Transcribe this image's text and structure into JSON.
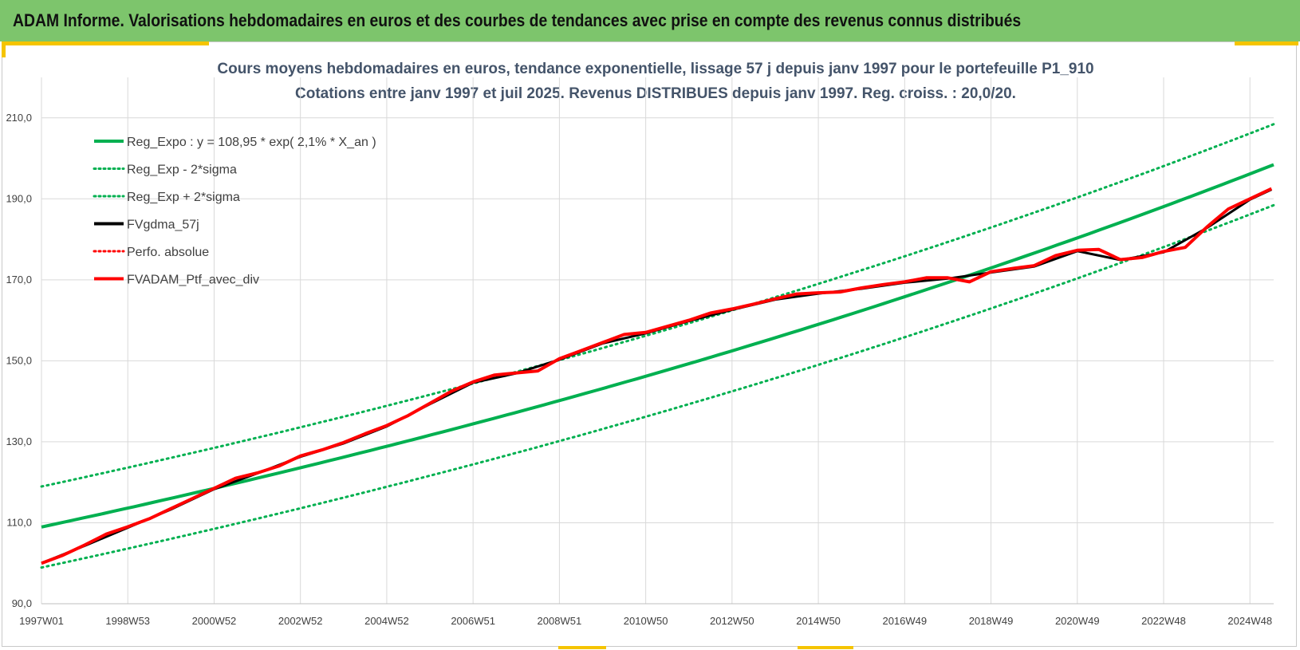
{
  "banner": {
    "title": "ADAM Informe. Valorisations hebdomadaires en euros et des courbes de tendances avec prise en compte des revenus connus distribués"
  },
  "colors": {
    "banner_bg": "#7dc56c",
    "green": "#00b050",
    "red": "#ff0000",
    "black": "#000000",
    "accent": "#f5c400"
  },
  "chart_data": {
    "type": "line",
    "title": "Cours moyens hebdomadaires  en euros, tendance exponentielle, lissage 57 j depuis janv 1997 pour le portefeuille P1_910",
    "subtitle": "Cotations entre janv 1997 et juil 2025. Revenus DISTRIBUES depuis janv 1997. Reg. croiss. : 20,0/20.",
    "xlabel": "",
    "ylabel": "",
    "x_range": [
      1997.0,
      2025.55
    ],
    "ylim": [
      90,
      220
    ],
    "y_ticks": [
      "90,0",
      "110,0",
      "130,0",
      "150,0",
      "170,0",
      "190,0",
      "210,0"
    ],
    "y_tick_values": [
      90,
      110,
      130,
      150,
      170,
      190,
      210
    ],
    "x_tick_labels": [
      "1997W01",
      "1998W53",
      "2000W52",
      "2002W52",
      "2004W52",
      "2006W51",
      "2008W51",
      "2010W50",
      "2012W50",
      "2014W50",
      "2016W49",
      "2018W49",
      "2020W49",
      "2022W48",
      "2024W48"
    ],
    "x_tick_years": [
      1997.0,
      1999.0,
      2001.0,
      2003.0,
      2005.0,
      2007.0,
      2009.0,
      2011.0,
      2013.0,
      2015.0,
      2017.0,
      2019.0,
      2021.0,
      2023.0,
      2025.0
    ],
    "grid": true,
    "legend_position": "top-left",
    "regression": {
      "a": 108.95,
      "rate": 0.021,
      "sigma_band": 10.0
    },
    "legend": [
      {
        "name": "Reg_Expo : y = 108,95 * exp( 2,1% *  X_an )",
        "color": "#00b050",
        "style": "solid"
      },
      {
        "name": "Reg_Exp - 2*sigma",
        "color": "#00b050",
        "style": "dotted"
      },
      {
        "name": "Reg_Exp + 2*sigma",
        "color": "#00b050",
        "style": "dotted"
      },
      {
        "name": "FVgdma_57j",
        "color": "#000000",
        "style": "solid"
      },
      {
        "name": "Perfo. absolue",
        "color": "#ff0000",
        "style": "dotted"
      },
      {
        "name": "FVADAM_Ptf_avec_div",
        "color": "#ff0000",
        "style": "solid"
      }
    ],
    "series": [
      {
        "name": "FVADAM_Ptf_avec_div",
        "x": [
          1997.0,
          1997.5,
          1998.0,
          1998.5,
          1999.0,
          1999.5,
          2000.0,
          2000.5,
          2001.0,
          2001.5,
          2002.0,
          2002.5,
          2003.0,
          2003.5,
          2004.0,
          2004.5,
          2005.0,
          2005.5,
          2006.0,
          2006.5,
          2007.0,
          2007.5,
          2008.0,
          2008.5,
          2009.0,
          2009.5,
          2010.0,
          2010.5,
          2011.0,
          2011.5,
          2012.0,
          2012.5,
          2013.0,
          2013.5,
          2014.0,
          2014.5,
          2015.0,
          2015.5,
          2016.0,
          2016.5,
          2017.0,
          2017.5,
          2018.0,
          2018.5,
          2019.0,
          2019.5,
          2020.0,
          2020.5,
          2021.0,
          2021.5,
          2022.0,
          2022.5,
          2023.0,
          2023.5,
          2024.0,
          2024.5,
          2025.0,
          2025.5
        ],
        "y": [
          100.0,
          102.0,
          104.5,
          107.2,
          109.0,
          111.0,
          113.5,
          116.0,
          118.5,
          121.0,
          122.3,
          124.0,
          126.5,
          128.0,
          129.8,
          132.0,
          134.0,
          136.5,
          139.5,
          142.5,
          144.8,
          146.5,
          147.0,
          147.5,
          150.5,
          152.5,
          154.5,
          156.5,
          157.0,
          158.5,
          160.0,
          161.8,
          162.8,
          164.0,
          165.3,
          166.5,
          166.8,
          167.0,
          168.0,
          168.8,
          169.5,
          170.5,
          170.5,
          169.5,
          172.0,
          172.8,
          173.5,
          176.0,
          177.3,
          177.5,
          175.0,
          175.5,
          177.0,
          178.0,
          183.0,
          187.5,
          190.0,
          192.5
        ]
      },
      {
        "name": "FVgdma_57j",
        "x": [
          1997.0,
          1998.0,
          1999.0,
          2000.0,
          2001.0,
          2002.0,
          2003.0,
          2004.0,
          2005.0,
          2006.0,
          2007.0,
          2008.0,
          2009.0,
          2010.0,
          2011.0,
          2012.0,
          2013.0,
          2014.0,
          2015.0,
          2016.0,
          2017.0,
          2018.0,
          2019.0,
          2020.0,
          2021.0,
          2022.0,
          2023.0,
          2024.0,
          2025.0,
          2025.5
        ],
        "y": [
          100.0,
          104.3,
          108.8,
          113.3,
          118.3,
          122.2,
          126.3,
          129.6,
          133.8,
          139.3,
          144.6,
          146.9,
          150.3,
          154.3,
          156.8,
          159.8,
          162.6,
          165.1,
          166.6,
          167.8,
          169.3,
          170.3,
          171.8,
          173.3,
          177.1,
          174.9,
          176.8,
          182.8,
          189.8,
          192.3
        ]
      }
    ]
  }
}
